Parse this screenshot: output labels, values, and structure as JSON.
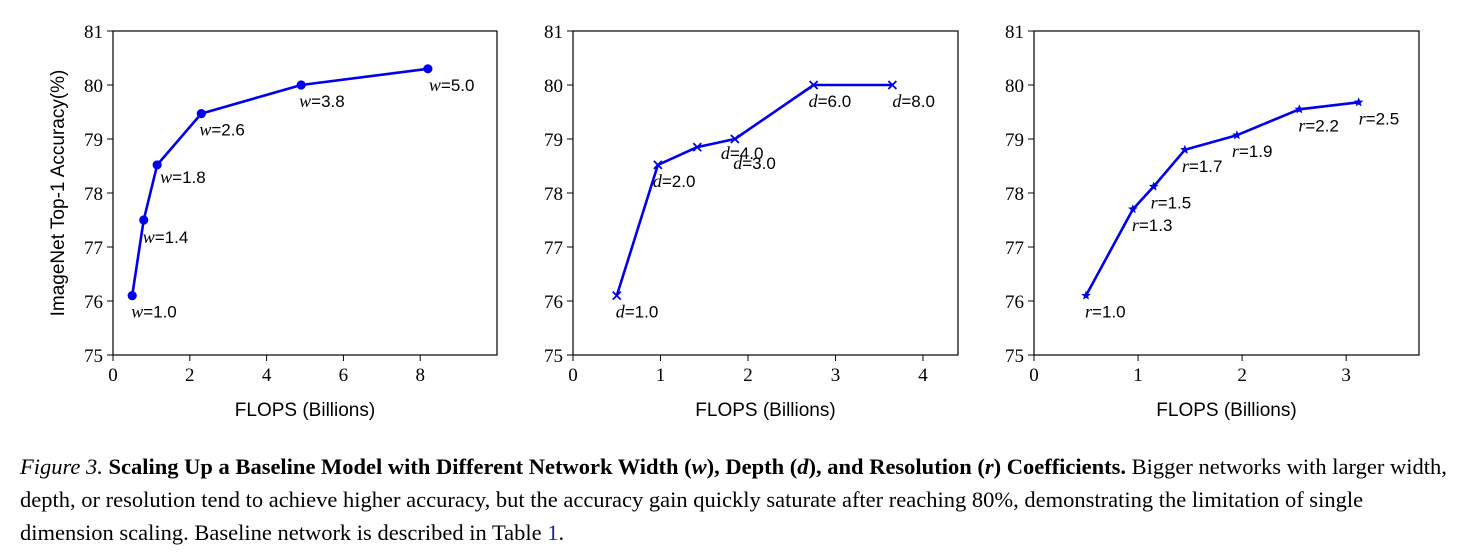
{
  "chart_data": [
    {
      "type": "line",
      "marker": "circle",
      "color": "#0000ee",
      "coef_symbol": "w",
      "xlabel": "FLOPS (Billions)",
      "ylabel": "ImageNet Top-1 Accuracy(%)",
      "xlim": [
        0,
        10
      ],
      "ylim": [
        75,
        81
      ],
      "xticks": [
        "0",
        "2",
        "4",
        "6",
        "8"
      ],
      "yticks": [
        "75",
        "76",
        "77",
        "78",
        "79",
        "80",
        "81"
      ],
      "x": [
        0.5,
        0.8,
        1.15,
        2.3,
        4.9,
        8.2
      ],
      "y": [
        76.1,
        77.5,
        78.52,
        79.47,
        80.0,
        80.3
      ],
      "labels": [
        "=1.0",
        "=1.4",
        "=1.8",
        "=2.6",
        "=3.8",
        "=5.0"
      ]
    },
    {
      "type": "line",
      "marker": "x",
      "color": "#0000ee",
      "coef_symbol": "d",
      "xlabel": "FLOPS (Billions)",
      "ylabel": "",
      "xlim": [
        0,
        4.4
      ],
      "ylim": [
        75,
        81
      ],
      "xticks": [
        "0",
        "1",
        "2",
        "3",
        "4"
      ],
      "yticks": [
        "75",
        "76",
        "77",
        "78",
        "79",
        "80",
        "81"
      ],
      "x": [
        0.5,
        0.97,
        1.42,
        1.85,
        2.75,
        3.65
      ],
      "y": [
        76.1,
        78.52,
        78.85,
        79.0,
        80.0,
        80.0
      ],
      "labels": [
        "=1.0",
        "=2.0",
        "=3.0",
        "=4.0",
        "=6.0",
        "=8.0"
      ]
    },
    {
      "type": "line",
      "marker": "star",
      "color": "#0000ee",
      "coef_symbol": "r",
      "xlabel": "FLOPS (Billions)",
      "ylabel": "",
      "xlim": [
        0,
        3.7
      ],
      "ylim": [
        75,
        81
      ],
      "xticks": [
        "0",
        "1",
        "2",
        "3"
      ],
      "yticks": [
        "75",
        "76",
        "77",
        "78",
        "79",
        "80",
        "81"
      ],
      "x": [
        0.5,
        0.95,
        1.15,
        1.45,
        1.95,
        2.55,
        3.12
      ],
      "y": [
        76.1,
        77.7,
        78.12,
        78.8,
        79.07,
        79.55,
        79.68
      ],
      "labels": [
        "=1.0",
        "=1.3",
        "=1.5",
        "=1.7",
        "=1.9",
        "=2.2",
        "=2.5"
      ]
    }
  ],
  "caption": {
    "figure_label": "Figure 3.",
    "title_part1": "Scaling Up a Baseline Model with Different Network Width (",
    "sym_w": "w",
    "title_part2": "), Depth (",
    "sym_d": "d",
    "title_part3": "), and Resolution (",
    "sym_r": "r",
    "title_part4": ") Coefficients.",
    "body": "Bigger networks with larger width, depth, or resolution tend to achieve higher accuracy, but the accuracy gain quickly saturate after reaching 80%, demonstrating the limitation of single dimension scaling. Baseline network is described in Table ",
    "table_ref": "1",
    "end": "."
  }
}
